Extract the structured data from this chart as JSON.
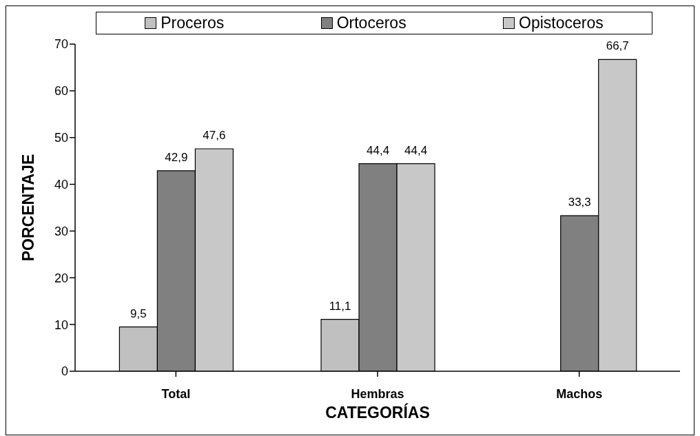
{
  "chart_data": {
    "type": "bar",
    "xlabel": "CATEGORÍAS",
    "ylabel": "PORCENTAJE",
    "categories": [
      "Total",
      "Hembras",
      "Machos"
    ],
    "series": [
      {
        "name": "Proceros",
        "color": "#c0c0c0",
        "values": [
          9.5,
          11.1,
          null
        ],
        "value_labels": [
          "9,5",
          "11,1",
          null
        ]
      },
      {
        "name": "Ortoceros",
        "color": "#808080",
        "values": [
          42.9,
          44.4,
          33.3
        ],
        "value_labels": [
          "42,9",
          "44,4",
          "33,3"
        ]
      },
      {
        "name": "Opistoceros",
        "color": "#c8c8c8",
        "values": [
          47.6,
          44.4,
          66.7
        ],
        "value_labels": [
          "47,6",
          "44,4",
          "66,7"
        ]
      }
    ],
    "ylim": [
      0,
      70
    ],
    "yticks": [
      0,
      10,
      20,
      30,
      40,
      50,
      60,
      70
    ],
    "grid": false,
    "legend": "top"
  }
}
